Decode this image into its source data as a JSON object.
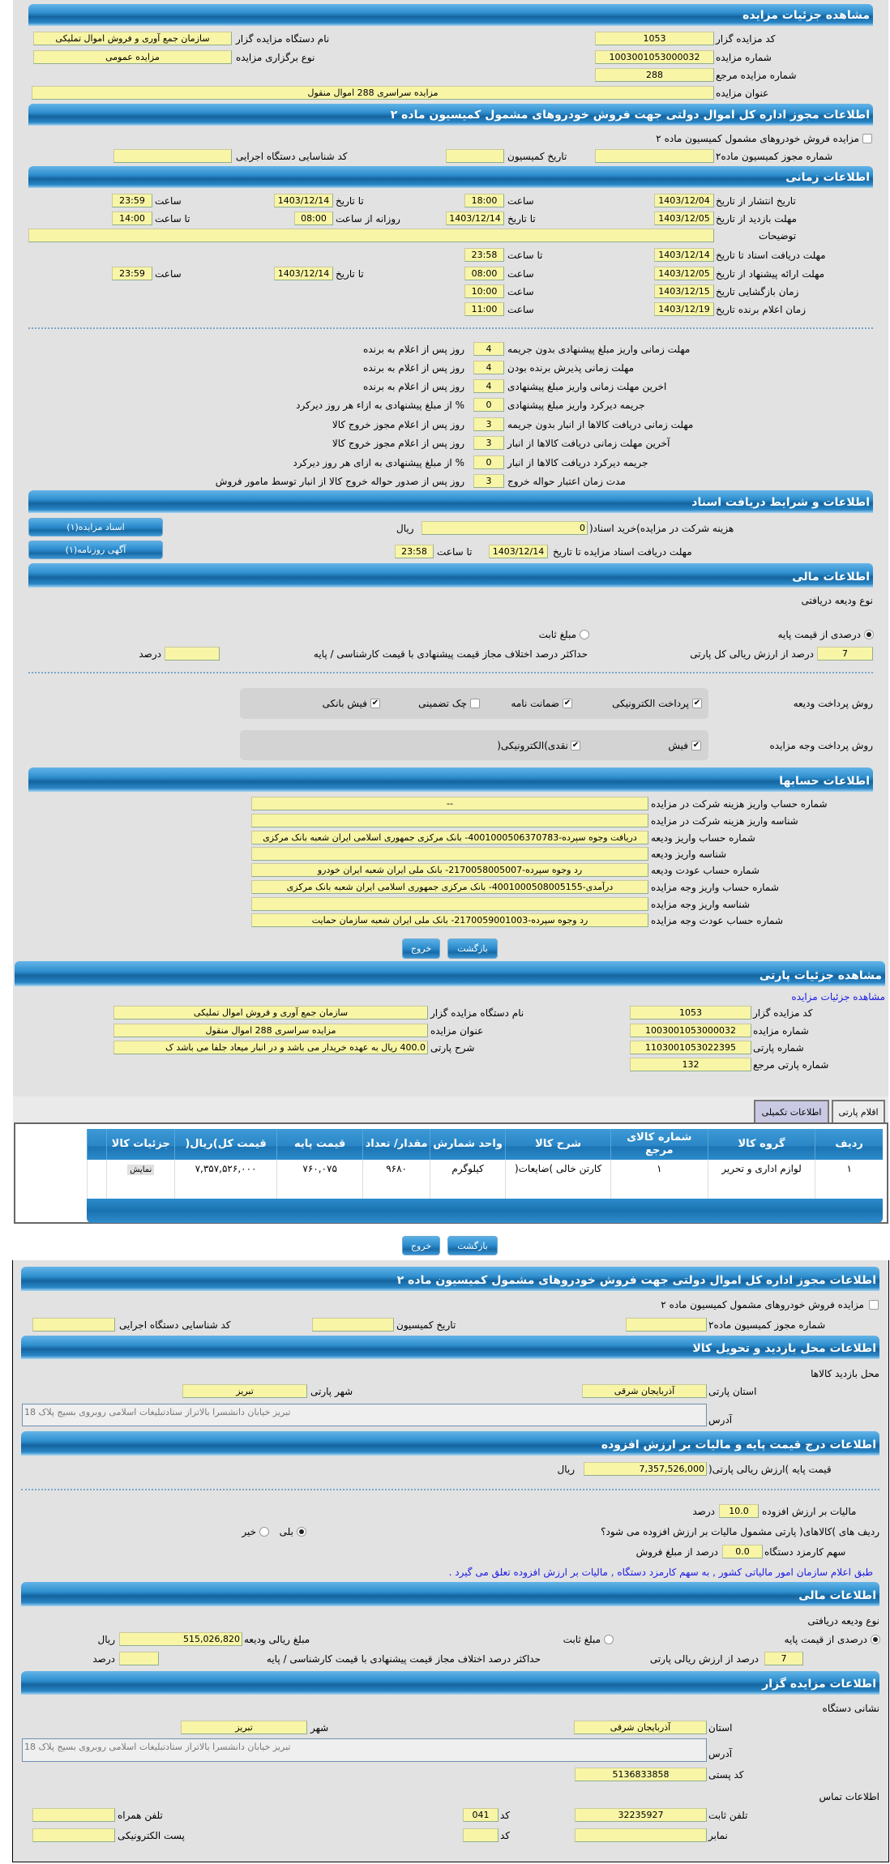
{
  "colors": {
    "header_blue": "#2f8fce",
    "field_yellow": "#f8f5a6",
    "panel_gray": "#e2e2e2",
    "link_blue": "#1a1ae6"
  },
  "auction_details": {
    "title": "مشاهده جزئیات مزایده",
    "code_label": "کد مزایده گزار",
    "code": "1053",
    "org_label": "نام دستگاه مزایده گزار",
    "org": "سازمان جمع آوری و فروش اموال تملیکی",
    "number_label": "شماره مزایده",
    "number": "1003001053000032",
    "type_label": "نوع برگزاری مزایده",
    "type": "مزایده عمومی",
    "ref_label": "شماره مزایده مرجع",
    "ref": "288",
    "subject_label": "عنوان مزایده",
    "subject": "مزایده سراسری 288 اموال منقول"
  },
  "permit": {
    "title": "اطلاعات مجوز اداره کل اموال دولتی جهت فروش خودروهای مشمول کمیسیون ماده ۲",
    "checked": false,
    "checkbox_label": "مزایده فروش خودروهای مشمول کمیسیون ماده ۲",
    "permit_no_label": "شماره مجوز کمیسیون ماده۲",
    "commission_date_label": "تاریخ کمیسیون",
    "exec_code_label": "کد شناسایی دستگاه اجرایی"
  },
  "timing": {
    "title": "اطلاعات زمانی",
    "publish": {
      "label": "تاریخ انتشار  از تاریخ",
      "from": "1403/12/04",
      "time_label": "ساعت",
      "time": "18:00",
      "to_label": "تا تاریخ",
      "to": "1403/12/14",
      "to_time_label": "ساعت",
      "to_time": "23:59"
    },
    "visit": {
      "label": "مهلت بازدید  از تاریخ",
      "from": "1403/12/05",
      "to_label": "تا تاریخ",
      "to": "1403/12/14",
      "daily_label": "روزانه از ساعت",
      "daily_from": "08:00",
      "to_time_label": "تا ساعت",
      "to_time": "14:00"
    },
    "notes_label": "توضیحات",
    "docs": {
      "label": "مهلت دریافت اسناد  تا تاریخ",
      "date": "1403/12/14",
      "time_label": "تا ساعت",
      "time": "23:58"
    },
    "offer": {
      "label": "مهلت ارائه پیشنهاد  از تاریخ",
      "from": "1403/12/05",
      "time_label": "ساعت",
      "time": "08:00",
      "to_label": "تا تاریخ",
      "to": "1403/12/14",
      "to_time_label": "ساعت",
      "to_time": "23:59"
    },
    "opening": {
      "label": "زمان بازگشایی    تاریخ",
      "date": "1403/12/15",
      "time_label": "ساعت",
      "time": "10:00"
    },
    "winner": {
      "label": "زمان اعلام برنده    تاریخ",
      "date": "1403/12/19",
      "time_label": "ساعت",
      "time": "11:00"
    }
  },
  "deadlines": [
    {
      "label": "مهلت زمانی واریز مبلغ پیشنهادی بدون جریمه",
      "value": "4",
      "suffix": "روز پس از اعلام به برنده"
    },
    {
      "label": "مهلت زمانی پذیرش برنده بودن",
      "value": "4",
      "suffix": "روز پس از اعلام به برنده"
    },
    {
      "label": "اخرین مهلت زمانی واریز مبلغ پیشنهادی",
      "value": "4",
      "suffix": "روز پس از اعلام به برنده"
    },
    {
      "label": "جریمه دیرکرد واریز مبلغ پیشنهادی",
      "value": "0",
      "suffix": "% از مبلغ پیشنهادی به ازاء هر روز دیرکرد"
    },
    {
      "label": "مهلت زمانی دریافت کالاها از انبار بدون جریمه",
      "value": "3",
      "suffix": "روز پس از اعلام مجوز خروج کالا"
    },
    {
      "label": "آخرین مهلت زمانی دریافت کالاها از انبار",
      "value": "3",
      "suffix": "روز پس از اعلام مجوز خروج کالا"
    },
    {
      "label": "جریمه دیرکرد دریافت کالاها از انبار",
      "value": "0",
      "suffix": "% از مبلغ پیشنهادی به ازای هر روز دیرکرد"
    },
    {
      "label": "مدت زمان اعتبار حواله خروج",
      "value": "3",
      "suffix": "روز پس از صدور حواله خروج کالا از انبار توسط مامور فروش"
    }
  ],
  "documents": {
    "title": "اطلاعات و شرایط دریافت اسناد",
    "fee_label": "هزینه شرکت در مزایده)خرید اسناد(",
    "fee": "0",
    "fee_unit": "ریال",
    "btn_docs": "اسناد مزایده(۱)",
    "deadline_label": "مهلت دریافت اسناد مزایده تا تاریخ",
    "deadline_date": "1403/12/14",
    "time_label": "تا ساعت",
    "deadline_time": "23:58",
    "btn_ad": "آگهی روزنامه(۱)"
  },
  "financial": {
    "title": "اطلاعات مالی",
    "deposit_type_label": "نوع ودیعه دریافتی",
    "percent_checked": true,
    "percent_label": "درصدی از قیمت پایه",
    "fixed_checked": false,
    "fixed_label": "مبلغ ثابت",
    "percent_value": "7",
    "percent_suffix": "درصد از ارزش ریالی کل پارتی",
    "max_diff_label": "حداکثر درصد اختلاف مجاز قیمت پیشنهادی با قیمت کارشناسی / پایه",
    "max_diff_value": "",
    "max_diff_unit": "درصد",
    "deposit_method_label": "روش پرداخت ودیعه",
    "methods": [
      {
        "label": "پرداخت الکترونیکی",
        "checked": true
      },
      {
        "label": "ضمانت نامه",
        "checked": true
      },
      {
        "label": "چک تضمینی",
        "checked": false
      },
      {
        "label": "فیش بانکی",
        "checked": true
      }
    ],
    "payment_method_label": "روش پرداخت وجه مزایده",
    "payments": [
      {
        "label": "فیش",
        "checked": true
      },
      {
        "label": "نقدی)الکترونیکی(",
        "checked": true
      }
    ]
  },
  "accounts": {
    "title": "اطلاعات حسابها",
    "rows": [
      {
        "label": "شماره حساب واریز هزینه شرکت در مزایده",
        "value": "--"
      },
      {
        "label": "شناسه واریز هزینه شرکت در مزایده",
        "value": ""
      },
      {
        "label": "شماره حساب واریز ودیعه",
        "value": "دریافت وجوه سپرده-4001000506370783- بانک مرکزی جمهوری اسلامی ایران شعبه بانک مرکزی"
      },
      {
        "label": "شناسه واریز ودیعه",
        "value": ""
      },
      {
        "label": "شماره حساب عودت ودیعه",
        "value": "رد وجوه سپرده-2170058005007- بانک ملی ایران شعبه ایران خودرو"
      },
      {
        "label": "شماره حساب واریز وجه مزایده",
        "value": "درآمدی-4001000508005155- بانک مرکزی جمهوری اسلامی ایران شعبه بانک مرکزی"
      },
      {
        "label": "شناسه واریز وجه مزایده",
        "value": ""
      },
      {
        "label": "شماره حساب عودت وجه مزایده",
        "value": "رد وجوه سپرده-2170059001003- بانک ملی ایران شعبه سازمان حمایت"
      }
    ]
  },
  "buttons": {
    "back": "بازگشت",
    "exit": "خروج"
  },
  "lot": {
    "title": "مشاهده جزئیات پارتی",
    "link": "مشاهده جزئیات مزایده",
    "lot_no_label": "شماره پارتی",
    "lot_no": "1103001053022395",
    "lot_desc_label": "شرح پارتی",
    "lot_desc": "400.0 ریال  به عهده خریدار می باشد و در انبار میعاد جلفا می باشد ک",
    "lot_ref_label": "شماره پارتی مرجع",
    "lot_ref": "132"
  },
  "tabs": [
    {
      "label": "اقلام پارتی"
    },
    {
      "label": "اطلاعات تکمیلی"
    }
  ],
  "table": {
    "columns": [
      "ردیف",
      "گروه کالا",
      "شماره کالای مرجع",
      "شرح کالا",
      "واحد شمارش",
      "مقدار/ تعداد",
      "قیمت پایه",
      "قیمت کل)ریال(",
      "جزئیات کالا",
      ""
    ],
    "rows": [
      [
        "۱",
        "لوازم اداری و تحریر",
        "۱",
        "کارتن خالی )ضایعات(",
        "کیلوگرم",
        "۹۶۸۰",
        "۷۶۰,۰۷۵",
        "۷,۳۵۷,۵۲۶,۰۰۰",
        "نمایش",
        ""
      ]
    ]
  },
  "visit_location": {
    "title": "اطلاعات محل بازدید و تحویل کالا",
    "section_label": "محل بازدید کالاها",
    "province_label": "استان پارتی",
    "province": "آذربایجان شرقی",
    "city_label": "شهر پارتی",
    "city": "تبریز",
    "address_label": "آدرس",
    "address": "تبریز خیابان دانشسرا بالاتراز ستادتبلیغات اسلامی روبروی بسیج پلاک 18"
  },
  "pricing": {
    "title": "اطلاعات درج قیمت پایه و مالیات بر ارزش افزوده",
    "base_label": "قیمت پایه )ارزش ریالی پارتی(",
    "base": "7,357,526,000",
    "unit": "ریال",
    "vat_label": "مالیات بر ارزش افزوده",
    "vat": "10.0",
    "vat_unit": "درصد",
    "vat_question": "ردیف های )کالاهای( پارتی مشمول مالیات بر ارزش افزوده می شود؟",
    "yes_checked": true,
    "yes": "بلی",
    "no_checked": false,
    "no": "خیر",
    "fee_label": "سهم کارمزد دستگاه",
    "fee": "0.0",
    "fee_suffix": "درصد از مبلغ فروش",
    "note": "طبق اعلام سازمان امور مالیاتی کشور , به سهم کارمزد دستگاه , مالیات بر ارزش افزوده تعلق می گیرد ."
  },
  "financial2": {
    "title": "اطلاعات مالی",
    "deposit_type_label": "نوع ودیعه دریافتی",
    "percent_checked": true,
    "percent_label": "درصدی از قیمت پایه",
    "fixed_checked": false,
    "fixed_label": "مبلغ ثابت",
    "amount_label": "مبلغ ریالی ودیعه",
    "amount": "515,026,820",
    "amount_unit": "ریال",
    "percent_value": "7",
    "percent_suffix": "درصد از ارزش ریالی پارتی",
    "max_diff_label": "حداکثر درصد اختلاف مجاز قیمت پیشنهادی با قیمت کارشناسی / پایه",
    "max_diff_unit": "درصد"
  },
  "auctioneer": {
    "title": "اطلاعات مزایده گزار",
    "address_section": "نشانی دستگاه",
    "province_label": "استان",
    "province": "آذربایجان شرقی",
    "city_label": "شهر",
    "city": "تبریز",
    "address_label": "آدرس",
    "address": "تبریز خیابان دانشسرا بالاتراز ستادتبلیغات اسلامی روبروی بسیج پلاک 18",
    "postal_label": "کد پستی",
    "postal": "5136833858",
    "contact_section": "اطلاعات تماس",
    "phone_label": "تلفن ثابت",
    "phone": "32235927",
    "code_label": "کد",
    "phone_code": "041",
    "mobile_label": "تلفن همراه",
    "fax_label": "نمابر",
    "fax_code": "",
    "email_label": "پست الکترونیکی"
  }
}
